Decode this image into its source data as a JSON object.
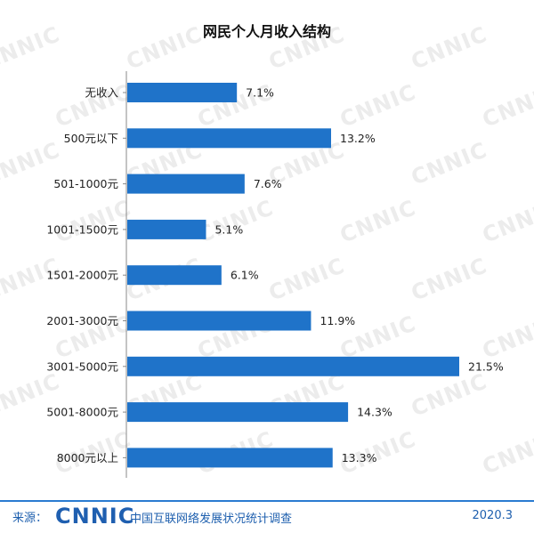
{
  "chart_data": {
    "type": "bar",
    "orientation": "horizontal",
    "title": "网民个人月收入结构",
    "categories": [
      "无收入",
      "500元以下",
      "501-1000元",
      "1001-1500元",
      "1501-2000元",
      "2001-3000元",
      "3001-5000元",
      "5001-8000元",
      "8000元以上"
    ],
    "values": [
      7.1,
      13.2,
      7.6,
      5.1,
      6.1,
      11.9,
      21.5,
      14.3,
      13.3
    ],
    "value_labels": [
      "7.1%",
      "13.2%",
      "7.6%",
      "5.1%",
      "6.1%",
      "11.9%",
      "21.5%",
      "14.3%",
      "13.3%"
    ],
    "bar_color": "#1f73c9",
    "grid": false,
    "xlim": [
      0,
      21.5
    ]
  },
  "watermark_text": "CNNIC",
  "footer": {
    "source_label": "来源：",
    "logo_text": "CNNIC",
    "org_name": "中国互联网络发展状况统计调查",
    "date": "2020.3"
  },
  "colors": {
    "accent": "#1f5fb0",
    "footer_line": "#2a7bd1"
  }
}
